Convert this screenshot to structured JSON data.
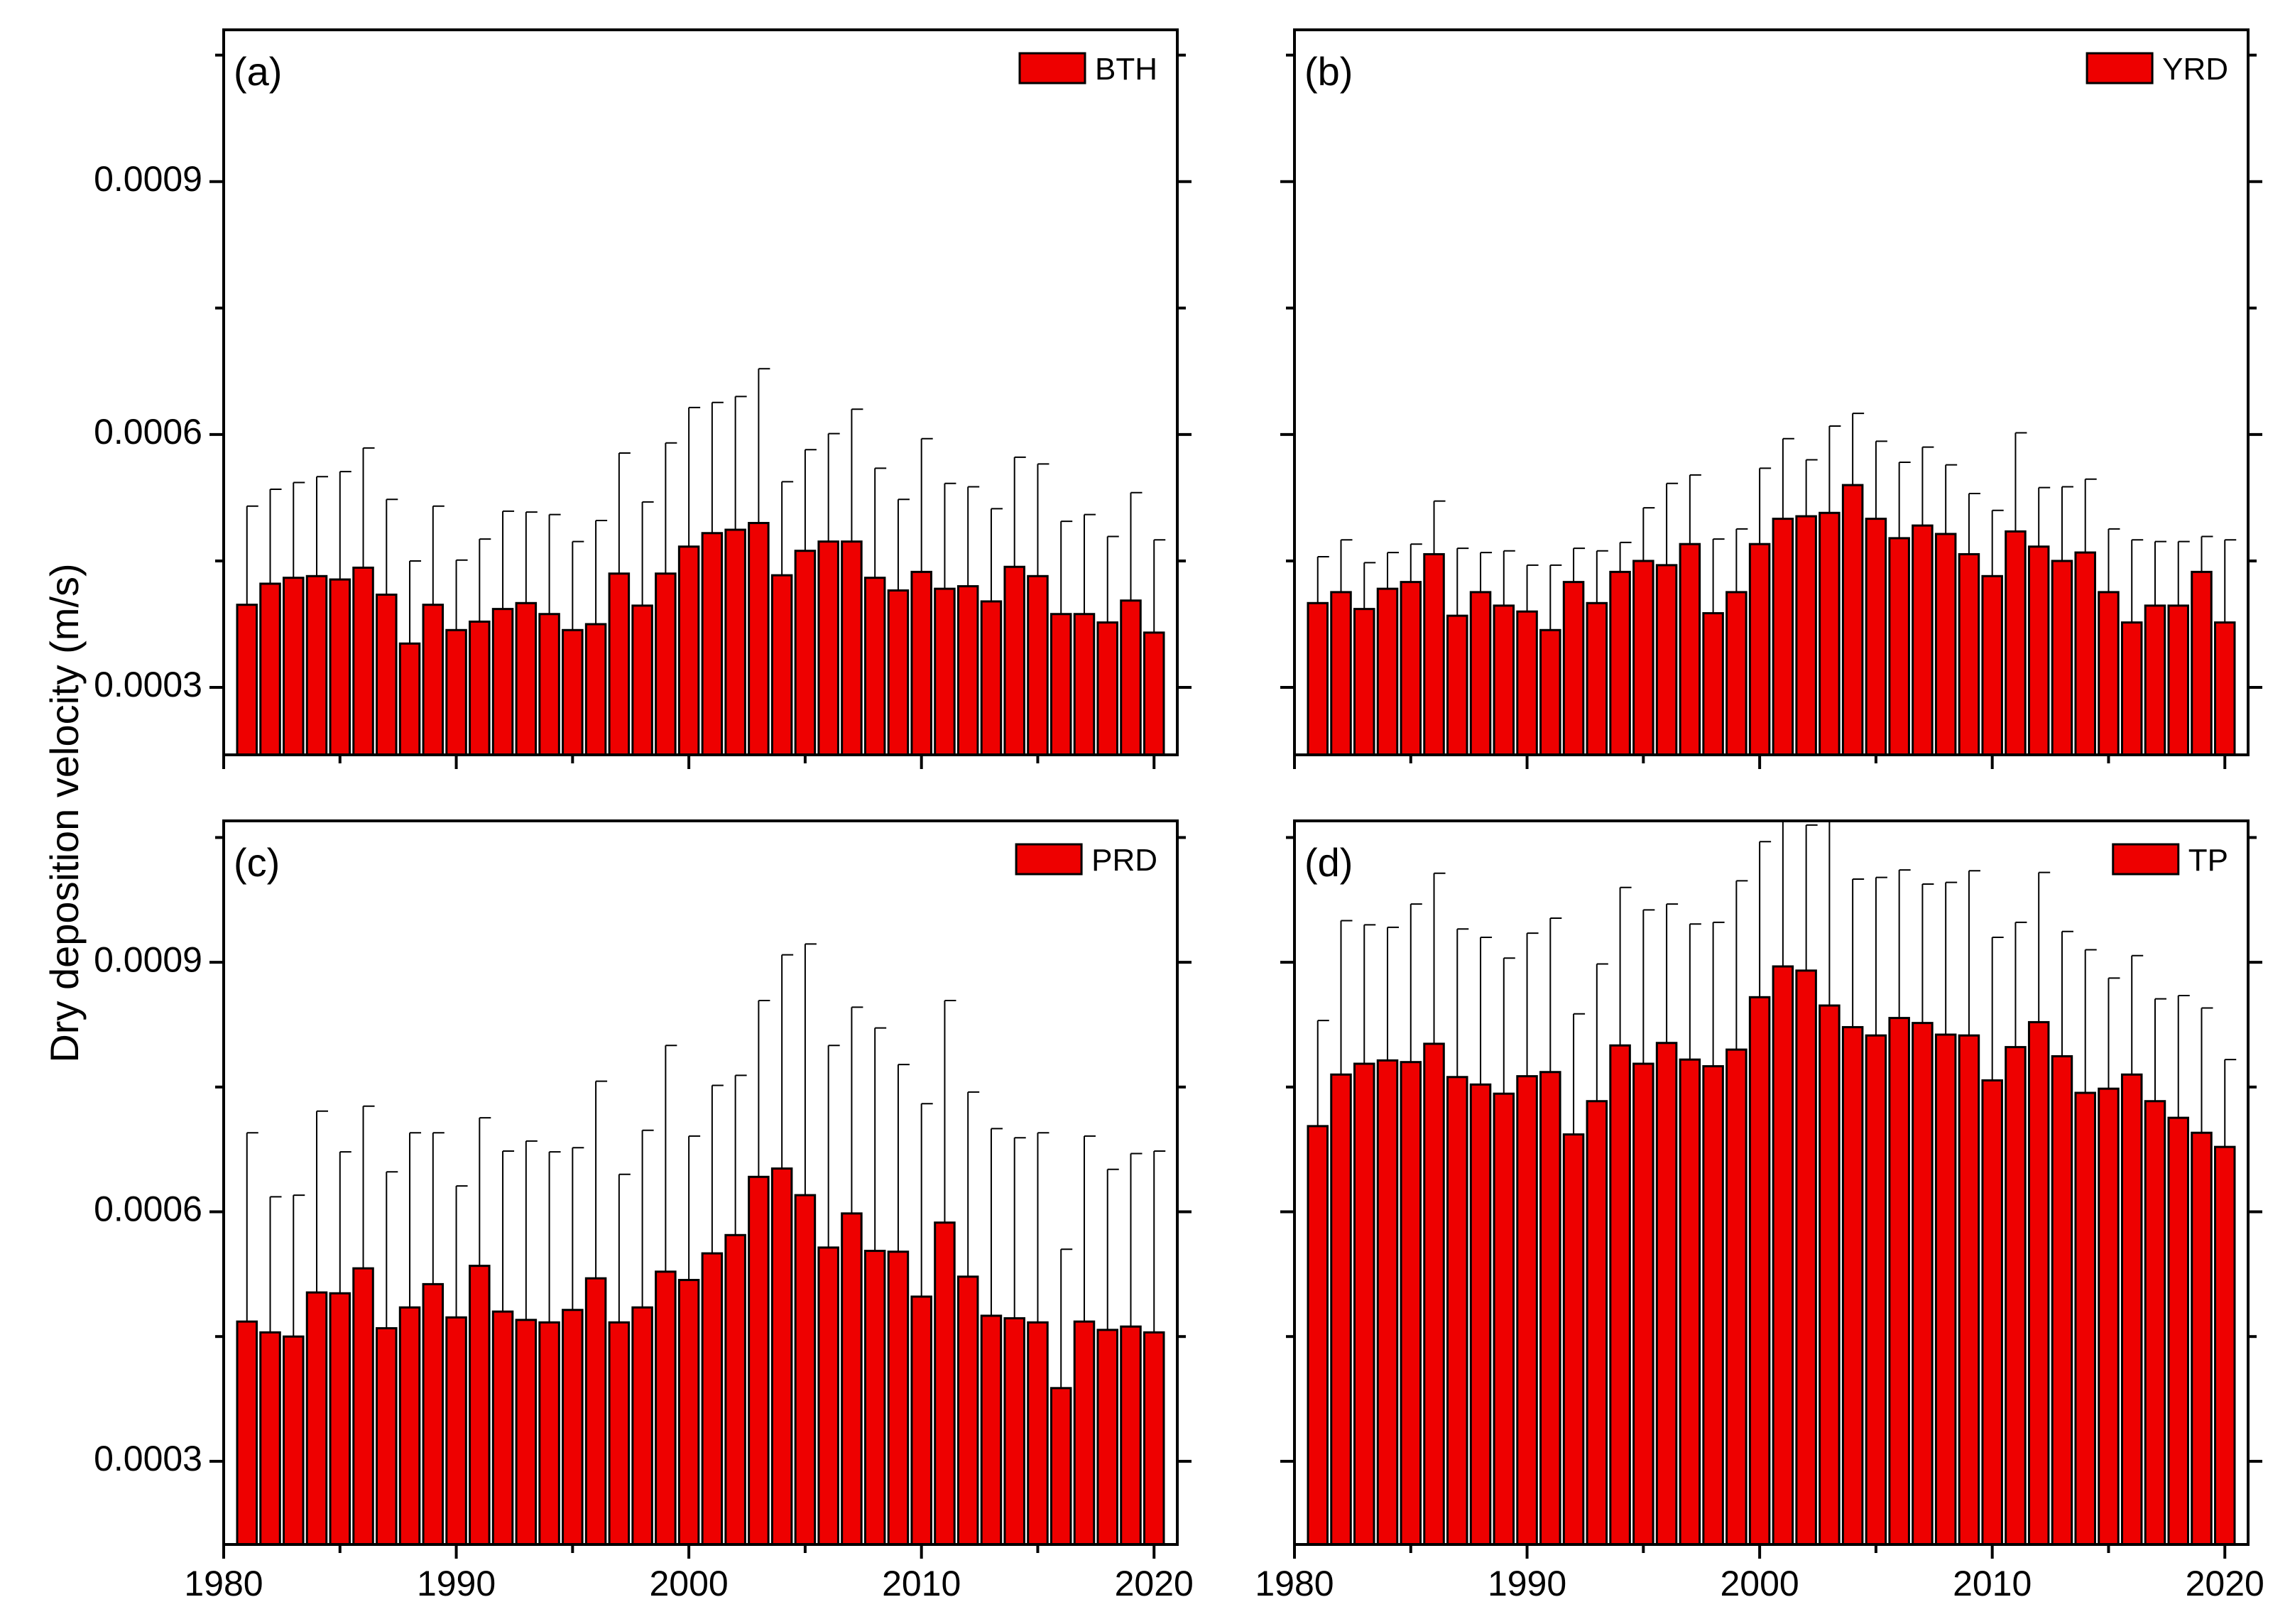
{
  "figure": {
    "ylabel": "Dry deposition velocity (m/s)",
    "colors": {
      "bar_fill": "#ee0000",
      "bar_stroke": "#000000",
      "axis": "#000000",
      "errorbar": "#000000"
    }
  },
  "chart_data": [
    {
      "type": "bar",
      "panel": "(a)",
      "legend": "BTH",
      "legend_position": "top-right",
      "xlim": [
        1980,
        2021
      ],
      "ylim": [
        0.00022,
        0.00108
      ],
      "x_ticks": [
        1980,
        1990,
        2000,
        2010,
        2020
      ],
      "y_ticks": [
        0.0003,
        0.0006,
        0.0009
      ],
      "y_tick_labels": [
        "0.0003",
        "0.0006",
        "0.0009"
      ],
      "show_y_tick_labels": true,
      "show_x_tick_labels": false,
      "x": [
        1981,
        1982,
        1983,
        1984,
        1985,
        1986,
        1987,
        1988,
        1989,
        1990,
        1991,
        1992,
        1993,
        1994,
        1995,
        1996,
        1997,
        1998,
        1999,
        2000,
        2001,
        2002,
        2003,
        2004,
        2005,
        2006,
        2007,
        2008,
        2009,
        2010,
        2011,
        2012,
        2013,
        2014,
        2015,
        2016,
        2017,
        2018,
        2019,
        2020
      ],
      "values": [
        0.000398,
        0.000423,
        0.00043,
        0.000432,
        0.000428,
        0.000442,
        0.00041,
        0.000352,
        0.000398,
        0.000368,
        0.000378,
        0.000393,
        0.0004,
        0.000387,
        0.000368,
        0.000375,
        0.000435,
        0.000397,
        0.000435,
        0.000467,
        0.000483,
        0.000487,
        0.000495,
        0.000433,
        0.000462,
        0.000473,
        0.000473,
        0.00043,
        0.000415,
        0.000437,
        0.000417,
        0.00042,
        0.000402,
        0.000443,
        0.000432,
        0.000387,
        0.000387,
        0.000377,
        0.000403,
        0.000365
      ],
      "errors": [
        0.000117,
        0.000112,
        0.000113,
        0.000118,
        0.000128,
        0.000142,
        0.000113,
        9.8e-05,
        0.000117,
        8.3e-05,
        9.8e-05,
        0.000116,
        0.000108,
        0.000118,
        0.000105,
        0.000123,
        0.000143,
        0.000123,
        0.000155,
        0.000165,
        0.000155,
        0.000158,
        0.000183,
        0.000111,
        0.00012,
        0.000128,
        0.000157,
        0.00013,
        0.000108,
        0.000158,
        0.000125,
        0.000118,
        0.00011,
        0.00013,
        0.000133,
        0.00011,
        0.000118,
        0.000102,
        0.000128,
        0.00011
      ]
    },
    {
      "type": "bar",
      "panel": "(b)",
      "legend": "YRD",
      "legend_position": "top-right",
      "xlim": [
        1980,
        2021
      ],
      "ylim": [
        0.00022,
        0.00108
      ],
      "x_ticks": [
        1980,
        1990,
        2000,
        2010,
        2020
      ],
      "y_ticks": [
        0.0003,
        0.0006,
        0.0009
      ],
      "show_y_tick_labels": false,
      "show_x_tick_labels": false,
      "x": [
        1981,
        1982,
        1983,
        1984,
        1985,
        1986,
        1987,
        1988,
        1989,
        1990,
        1991,
        1992,
        1993,
        1994,
        1995,
        1996,
        1997,
        1998,
        1999,
        2000,
        2001,
        2002,
        2003,
        2004,
        2005,
        2006,
        2007,
        2008,
        2009,
        2010,
        2011,
        2012,
        2013,
        2014,
        2015,
        2016,
        2017,
        2018,
        2019,
        2020
      ],
      "values": [
        0.0004,
        0.000413,
        0.000393,
        0.000417,
        0.000425,
        0.000458,
        0.000385,
        0.000413,
        0.000397,
        0.00039,
        0.000368,
        0.000425,
        0.0004,
        0.000437,
        0.00045,
        0.000445,
        0.00047,
        0.000388,
        0.000413,
        0.00047,
        0.0005,
        0.000503,
        0.000507,
        0.00054,
        0.0005,
        0.000477,
        0.000492,
        0.000482,
        0.000458,
        0.000432,
        0.000485,
        0.000467,
        0.00045,
        0.00046,
        0.000413,
        0.000377,
        0.000397,
        0.000397,
        0.000437,
        0.000377
      ],
      "errors": [
        5.5e-05,
        6.2e-05,
        5.5e-05,
        4.3e-05,
        4.5e-05,
        6.3e-05,
        8e-05,
        4.7e-05,
        6.5e-05,
        5.5e-05,
        7.7e-05,
        4e-05,
        6.2e-05,
        3.5e-05,
        6.3e-05,
        9.7e-05,
        8.2e-05,
        8.8e-05,
        7.5e-05,
        9e-05,
        9.5e-05,
        6.7e-05,
        0.000103,
        8.5e-05,
        9.2e-05,
        9e-05,
        9.3e-05,
        8.2e-05,
        7.2e-05,
        7.8e-05,
        0.000117,
        7e-05,
        8.8e-05,
        8.7e-05,
        7.5e-05,
        9.8e-05,
        7.6e-05,
        7.6e-05,
        4.2e-05,
        9.8e-05
      ]
    },
    {
      "type": "bar",
      "panel": "(c)",
      "legend": "PRD",
      "legend_position": "top-right",
      "xlim": [
        1980,
        2021
      ],
      "ylim": [
        0.0002,
        0.00107
      ],
      "x_ticks": [
        1980,
        1990,
        2000,
        2010,
        2020
      ],
      "x_tick_labels": [
        "1980",
        "1990",
        "2000",
        "2010",
        "2020"
      ],
      "y_ticks": [
        0.0003,
        0.0006,
        0.0009
      ],
      "y_tick_labels": [
        "0.0003",
        "0.0006",
        "0.0009"
      ],
      "show_y_tick_labels": true,
      "show_x_tick_labels": true,
      "x": [
        1981,
        1982,
        1983,
        1984,
        1985,
        1986,
        1987,
        1988,
        1989,
        1990,
        1991,
        1992,
        1993,
        1994,
        1995,
        1996,
        1997,
        1998,
        1999,
        2000,
        2001,
        2002,
        2003,
        2004,
        2005,
        2006,
        2007,
        2008,
        2009,
        2010,
        2011,
        2012,
        2013,
        2014,
        2015,
        2016,
        2017,
        2018,
        2019,
        2020
      ],
      "values": [
        0.000468,
        0.000455,
        0.00045,
        0.000503,
        0.000502,
        0.000532,
        0.00046,
        0.000485,
        0.000513,
        0.000473,
        0.000535,
        0.00048,
        0.00047,
        0.000467,
        0.000482,
        0.00052,
        0.000467,
        0.000485,
        0.000528,
        0.000518,
        0.00055,
        0.000572,
        0.000642,
        0.000652,
        0.00062,
        0.000557,
        0.000598,
        0.000553,
        0.000552,
        0.000498,
        0.000587,
        0.000522,
        0.000475,
        0.000472,
        0.000467,
        0.000388,
        0.000468,
        0.000458,
        0.000462,
        0.000455
      ],
      "errors": [
        0.000227,
        0.000163,
        0.00017,
        0.000218,
        0.00017,
        0.000195,
        0.000188,
        0.00021,
        0.000182,
        0.000158,
        0.000178,
        0.000193,
        0.000215,
        0.000205,
        0.000195,
        0.000237,
        0.000178,
        0.000213,
        0.000272,
        0.000173,
        0.000202,
        0.000192,
        0.000212,
        0.000257,
        0.000302,
        0.000243,
        0.000248,
        0.000268,
        0.000225,
        0.000232,
        0.000267,
        0.000222,
        0.000225,
        0.000217,
        0.000228,
        0.000167,
        0.000223,
        0.000193,
        0.000208,
        0.000218
      ]
    },
    {
      "type": "bar",
      "panel": "(d)",
      "legend": "TP",
      "legend_position": "top-right",
      "xlim": [
        1980,
        2021
      ],
      "ylim": [
        0.0002,
        0.00107
      ],
      "x_ticks": [
        1980,
        1990,
        2000,
        2010,
        2020
      ],
      "x_tick_labels": [
        "1980",
        "1990",
        "2000",
        "2010",
        "2020"
      ],
      "y_ticks": [
        0.0003,
        0.0006,
        0.0009
      ],
      "show_y_tick_labels": false,
      "show_x_tick_labels": true,
      "x": [
        1981,
        1982,
        1983,
        1984,
        1985,
        1986,
        1987,
        1988,
        1989,
        1990,
        1991,
        1992,
        1993,
        1994,
        1995,
        1996,
        1997,
        1998,
        1999,
        2000,
        2001,
        2002,
        2003,
        2004,
        2005,
        2006,
        2007,
        2008,
        2009,
        2010,
        2011,
        2012,
        2013,
        2014,
        2015,
        2016,
        2017,
        2018,
        2019,
        2020
      ],
      "values": [
        0.000703,
        0.000765,
        0.000778,
        0.000782,
        0.00078,
        0.000802,
        0.000762,
        0.000753,
        0.000742,
        0.000763,
        0.000768,
        0.000693,
        0.000733,
        0.0008,
        0.000778,
        0.000803,
        0.000783,
        0.000775,
        0.000795,
        0.000858,
        0.000895,
        0.00089,
        0.000848,
        0.000822,
        0.000812,
        0.000833,
        0.000827,
        0.000813,
        0.000812,
        0.000758,
        0.000798,
        0.000828,
        0.000787,
        0.000743,
        0.000748,
        0.000765,
        0.000733,
        0.000713,
        0.000695,
        0.000678
      ],
      "errors": [
        0.000127,
        0.000185,
        0.000167,
        0.00016,
        0.00019,
        0.000205,
        0.000178,
        0.000177,
        0.000163,
        0.000172,
        0.000185,
        0.000145,
        0.000165,
        0.00019,
        0.000185,
        0.000167,
        0.000163,
        0.000173,
        0.000203,
        0.000187,
        0.000175,
        0.000175,
        0.000222,
        0.000178,
        0.00019,
        0.000178,
        0.000167,
        0.000183,
        0.000198,
        0.000172,
        0.00015,
        0.00018,
        0.00015,
        0.000172,
        0.000133,
        0.000143,
        0.000123,
        0.000147,
        0.00015,
        0.000105
      ]
    }
  ]
}
